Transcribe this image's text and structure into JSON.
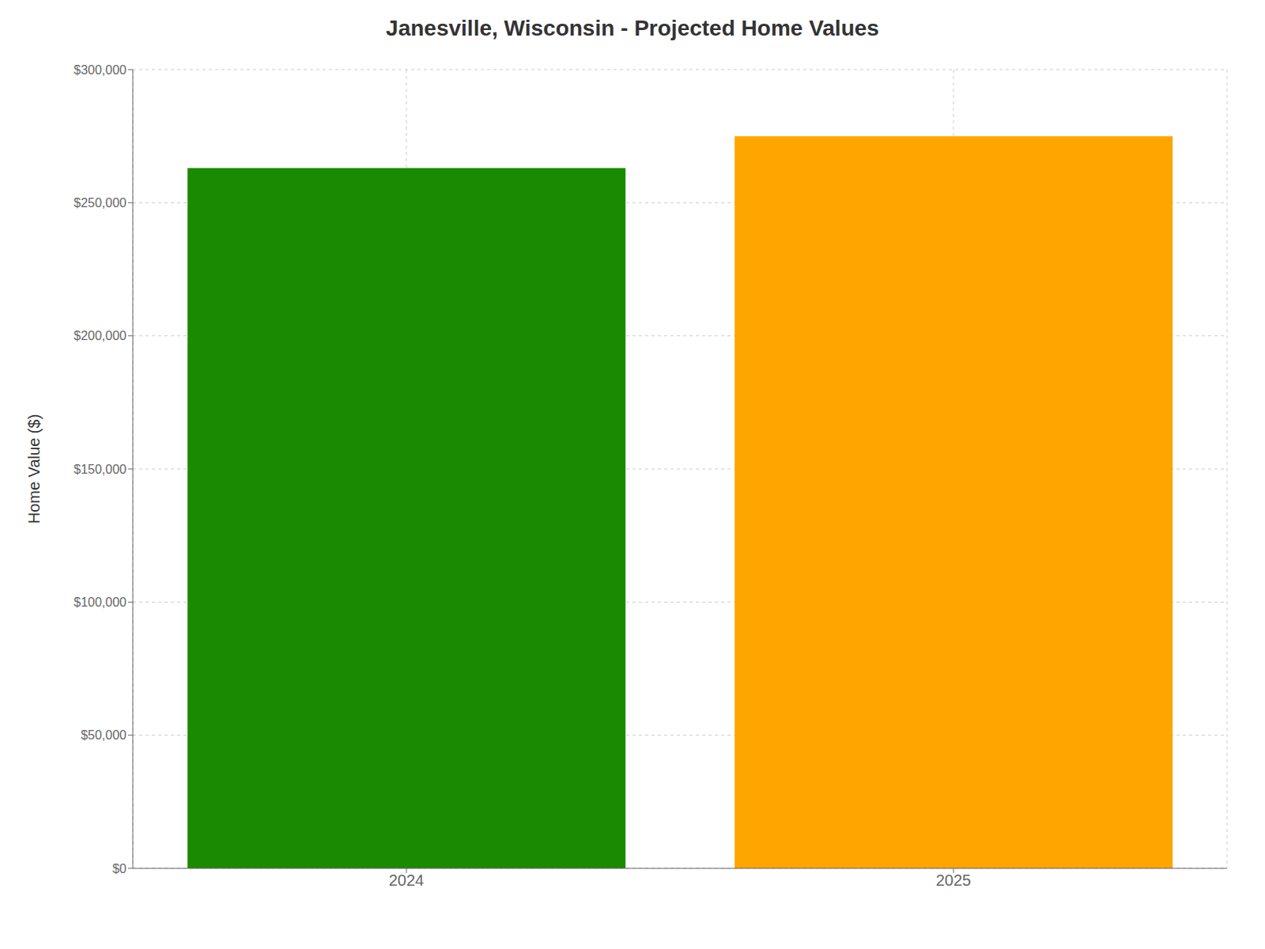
{
  "chart_data": {
    "type": "bar",
    "title": "Janesville, Wisconsin - Projected Home Values",
    "categories": [
      "2024",
      "2025"
    ],
    "values": [
      263000,
      275000
    ],
    "colors": [
      "#1a8a00",
      "#ffa500"
    ],
    "ylabel": "Home Value ($)",
    "ylim": [
      0,
      300000
    ],
    "yticks": [
      {
        "value": 0,
        "label": "$0"
      },
      {
        "value": 50000,
        "label": "$50,000"
      },
      {
        "value": 100000,
        "label": "$100,000"
      },
      {
        "value": 150000,
        "label": "$150,000"
      },
      {
        "value": 200000,
        "label": "$200,000"
      },
      {
        "value": 250000,
        "label": "$250,000"
      },
      {
        "value": 300000,
        "label": "$300,000"
      }
    ],
    "grid": true
  }
}
